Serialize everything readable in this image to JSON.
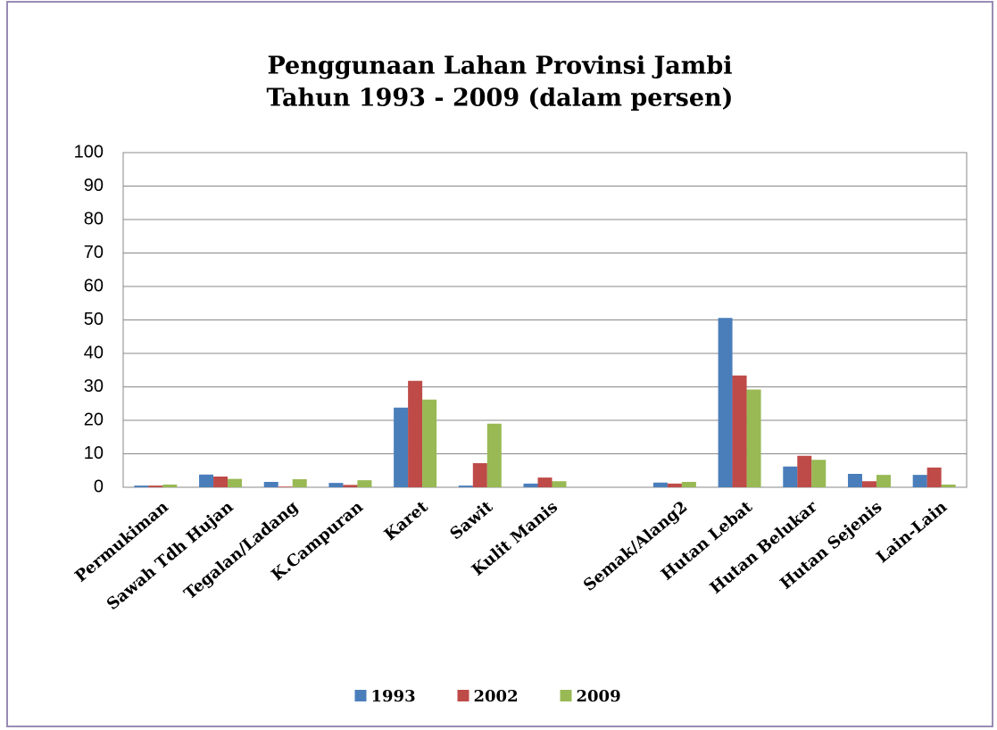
{
  "chart_data": {
    "type": "bar",
    "title": "Penggunaan Lahan Provinsi Jambi",
    "subtitle": "Tahun 1993 - 2009 (dalam persen)",
    "categories": [
      "Permukiman",
      "Sawah Tdh Hujan",
      "Tegalan/Ladang",
      "K.Campuran",
      "Karet",
      "Sawit",
      "Kulit Manis",
      null,
      "Semak/Alang2",
      "Hutan Lebat",
      "Hutan Belukar",
      "Hutan Sejenis",
      "Lain-Lain"
    ],
    "series": [
      {
        "name": "1993",
        "color": "#4a7ebb",
        "values": [
          0.5,
          3.8,
          1.6,
          1.3,
          23.8,
          0.5,
          1.1,
          null,
          1.4,
          50.6,
          6.2,
          4.0,
          3.7
        ]
      },
      {
        "name": "2002",
        "color": "#be4b48",
        "values": [
          0.5,
          3.2,
          0.2,
          0.7,
          31.8,
          7.2,
          2.9,
          null,
          1.1,
          33.4,
          9.4,
          1.8,
          5.9
        ]
      },
      {
        "name": "2009",
        "color": "#98b954",
        "values": [
          0.8,
          2.5,
          2.4,
          2.1,
          26.2,
          19.0,
          1.8,
          null,
          1.6,
          29.2,
          8.2,
          3.7,
          0.8
        ]
      }
    ],
    "ylim": [
      0,
      100
    ],
    "yticks": [
      0,
      10,
      20,
      30,
      40,
      50,
      60,
      70,
      80,
      90,
      100
    ],
    "grid": true,
    "legend": "bottom"
  }
}
